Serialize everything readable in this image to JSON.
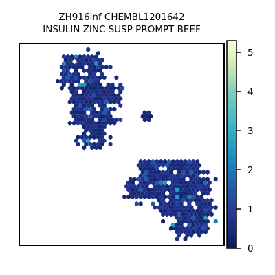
{
  "chart_data": {
    "type": "scatter",
    "style": "hexbin density map",
    "title_line1": "ZH916inf CHEMBL1201642",
    "title_line2": "INSULIN ZINC SUSP PROMPT BEEF",
    "xlabel": "",
    "ylabel": "",
    "axis_ticks_shown": false,
    "grid": false,
    "colorbar": {
      "min": 0,
      "max": 5.3,
      "ticks": [
        "0",
        "1",
        "2",
        "3",
        "4",
        "5"
      ],
      "colormap": "YlGnBu_r",
      "placement": "right"
    },
    "clusters": [
      {
        "name": "upper-left",
        "x": [
          0.22,
          0.52
        ],
        "y": [
          0.47,
          0.92
        ],
        "typical_value": 0.6
      },
      {
        "name": "middle-small",
        "x": [
          0.6,
          0.7
        ],
        "y": [
          0.6,
          0.67
        ],
        "typical_value": 0.5
      },
      {
        "name": "lower-right",
        "x": [
          0.53,
          0.93
        ],
        "y": [
          0.09,
          0.41
        ],
        "typical_value": 0.6
      }
    ],
    "max_value_point": {
      "x": 0.27,
      "y": 0.91,
      "value": 5.2
    }
  },
  "colors": {
    "low": "#081d58",
    "mid": "#1d91c0",
    "high": "#ffffd9",
    "frame": "#000000"
  }
}
